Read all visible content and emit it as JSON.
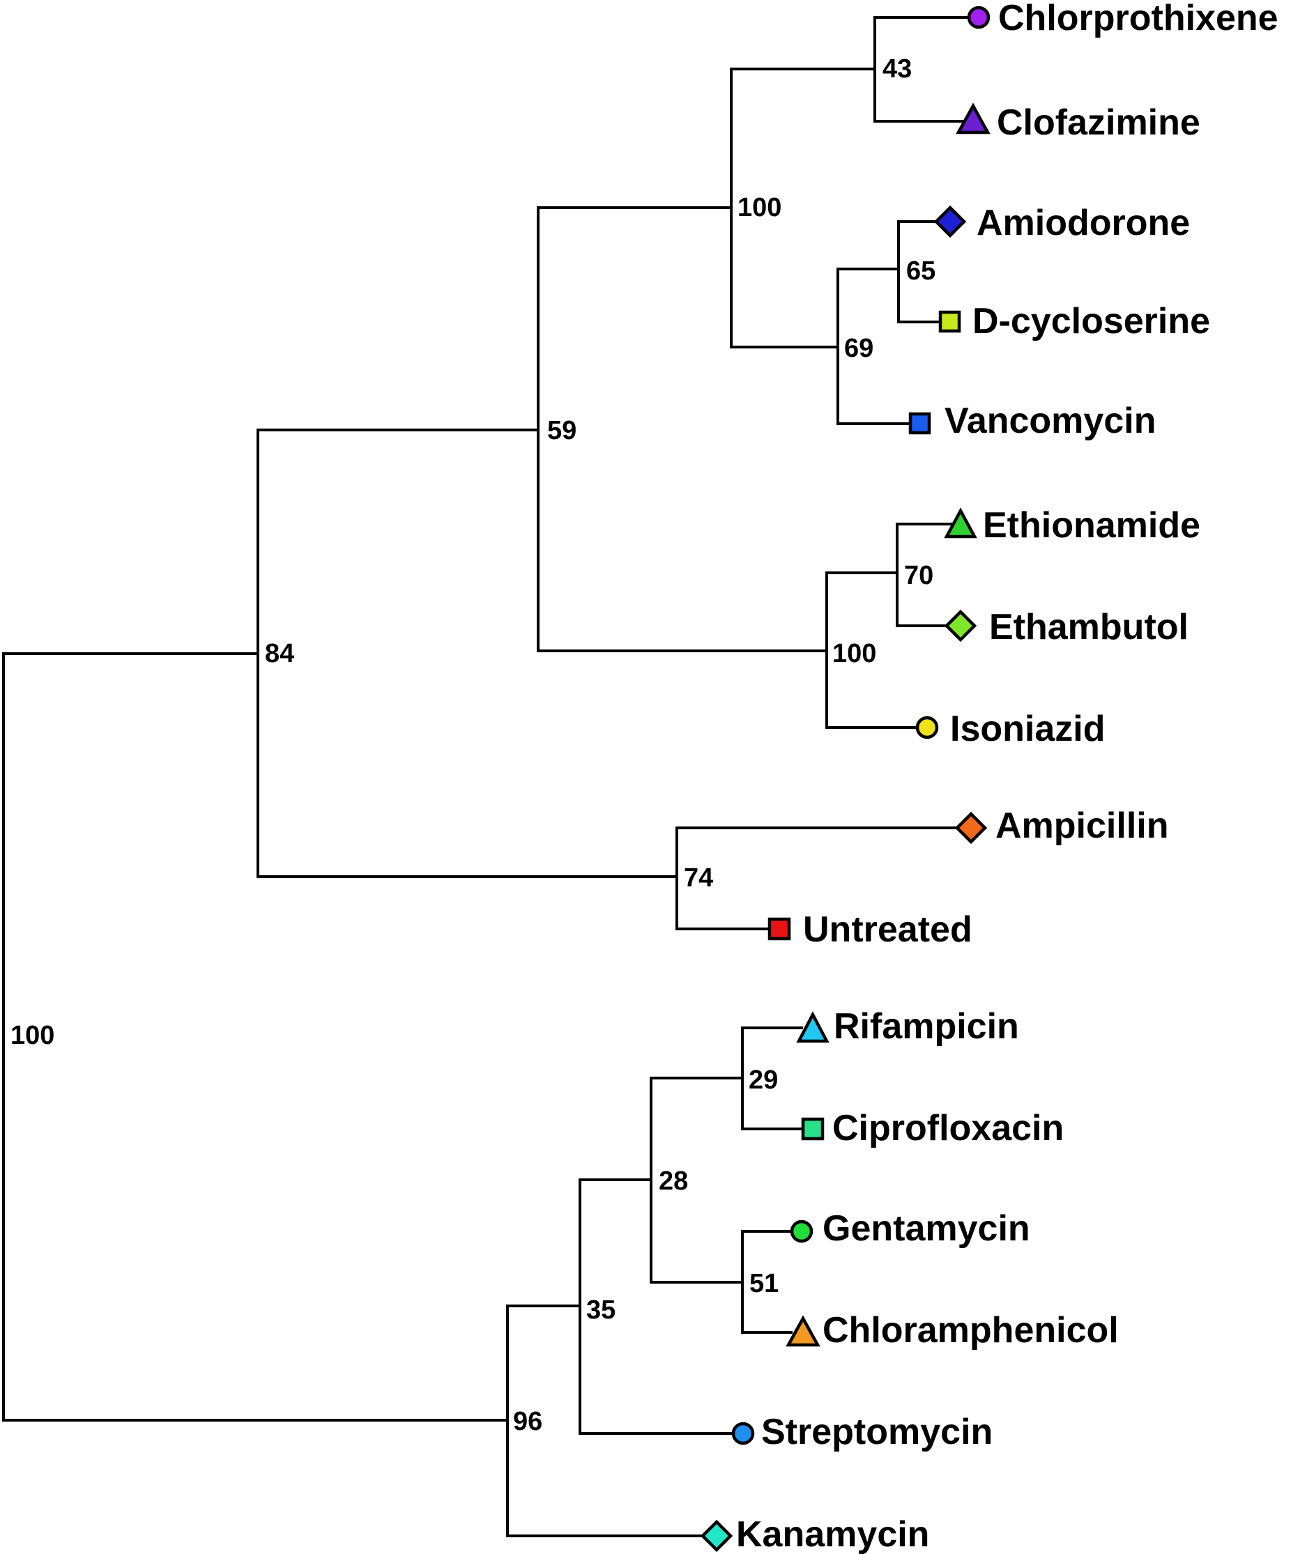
{
  "tree": {
    "root_support": "100",
    "clades": [
      {
        "id": "n_root",
        "support": "100"
      },
      {
        "id": "n_84",
        "support": "84"
      },
      {
        "id": "n_59",
        "support": "59"
      },
      {
        "id": "n_100a",
        "support": "100"
      },
      {
        "id": "n_43",
        "support": "43"
      },
      {
        "id": "n_69",
        "support": "69"
      },
      {
        "id": "n_65",
        "support": "65"
      },
      {
        "id": "n_100b",
        "support": "100"
      },
      {
        "id": "n_70",
        "support": "70"
      },
      {
        "id": "n_74",
        "support": "74"
      },
      {
        "id": "n_96",
        "support": "96"
      },
      {
        "id": "n_35",
        "support": "35"
      },
      {
        "id": "n_28",
        "support": "28"
      },
      {
        "id": "n_29",
        "support": "29"
      },
      {
        "id": "n_51",
        "support": "51"
      }
    ],
    "leaves": [
      {
        "id": "chlorprothixene",
        "label": "Chlorprothixene",
        "shape": "circle",
        "color": "#a020f0"
      },
      {
        "id": "clofazimine",
        "label": "Clofazimine",
        "shape": "triangle",
        "color": "#6a1fd0"
      },
      {
        "id": "amiodorone",
        "label": "Amiodorone",
        "shape": "diamond",
        "color": "#1f1fd6"
      },
      {
        "id": "d-cycloserine",
        "label": "D-cycloserine",
        "shape": "square",
        "color": "#c8e81e"
      },
      {
        "id": "vancomycin",
        "label": "Vancomycin",
        "shape": "square",
        "color": "#1b5cf0"
      },
      {
        "id": "ethionamide",
        "label": "Ethionamide",
        "shape": "triangle",
        "color": "#2ed12e"
      },
      {
        "id": "ethambutol",
        "label": "Ethambutol",
        "shape": "diamond",
        "color": "#7fe62a"
      },
      {
        "id": "isoniazid",
        "label": "Isoniazid",
        "shape": "circle",
        "color": "#f2e21a"
      },
      {
        "id": "ampicillin",
        "label": "Ampicillin",
        "shape": "diamond",
        "color": "#f06a1a"
      },
      {
        "id": "untreated",
        "label": "Untreated",
        "shape": "square",
        "color": "#e81414"
      },
      {
        "id": "rifampicin",
        "label": "Rifampicin",
        "shape": "triangle",
        "color": "#22c8f0"
      },
      {
        "id": "ciprofloxacin",
        "label": "Ciprofloxacin",
        "shape": "square",
        "color": "#27e08c"
      },
      {
        "id": "gentamycin",
        "label": "Gentamycin",
        "shape": "circle",
        "color": "#22dd3a"
      },
      {
        "id": "chloramphenicol",
        "label": "Chloramphenicol",
        "shape": "triangle",
        "color": "#f29a1f"
      },
      {
        "id": "streptomycin",
        "label": "Streptomycin",
        "shape": "circle",
        "color": "#1f8ff0"
      },
      {
        "id": "kanamycin",
        "label": "Kanamycin",
        "shape": "diamond",
        "color": "#22e8c8"
      }
    ]
  }
}
